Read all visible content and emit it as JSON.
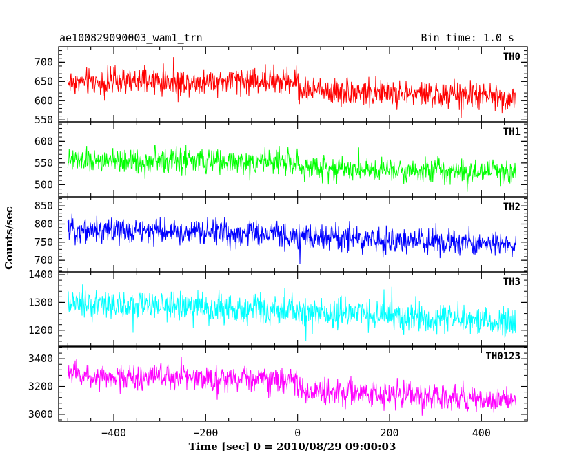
{
  "header": {
    "title": "ae100829090003_wam1_trn",
    "bin_time": "Bin time: 1.0 s"
  },
  "chart_data": {
    "type": "line",
    "xlabel": "Time [sec] 0 = 2010/08/29 09:00:03",
    "ylabel": "Counts/sec",
    "xlim": [
      -520,
      500
    ],
    "data_x_range": [
      -500,
      475
    ],
    "x_ticks": [
      -400,
      -200,
      0,
      200,
      400
    ],
    "x_tick_labels": [
      "−400",
      "−200",
      "0",
      "200",
      "400"
    ],
    "panels": [
      {
        "name": "TH0",
        "color": "#ff0000",
        "ylim": [
          545,
          740
        ],
        "y_ticks": [
          550,
          600,
          650,
          700
        ],
        "y_tick_labels": [
          "550",
          "600",
          "650",
          "700"
        ],
        "trend": [
          [
            -500,
            648
          ],
          [
            0,
            652
          ],
          [
            2,
            628
          ],
          [
            475,
            608
          ]
        ],
        "amplitude": 28
      },
      {
        "name": "TH1",
        "color": "#00ff00",
        "ylim": [
          472,
          645
        ],
        "y_ticks": [
          500,
          550,
          600
        ],
        "y_tick_labels": [
          "500",
          "550",
          "600"
        ],
        "trend": [
          [
            -500,
            555
          ],
          [
            0,
            552
          ],
          [
            2,
            540
          ],
          [
            475,
            530
          ]
        ],
        "amplitude": 22
      },
      {
        "name": "TH2",
        "color": "#0000ff",
        "ylim": [
          668,
          875
        ],
        "y_ticks": [
          700,
          750,
          800,
          850
        ],
        "y_tick_labels": [
          "700",
          "750",
          "800",
          "850"
        ],
        "trend": [
          [
            -500,
            785
          ],
          [
            0,
            770
          ],
          [
            2,
            765
          ],
          [
            475,
            742
          ]
        ],
        "amplitude": 28
      },
      {
        "name": "TH3",
        "color": "#00ffff",
        "ylim": [
          1140,
          1410
        ],
        "y_ticks": [
          1200,
          1300,
          1400
        ],
        "y_tick_labels": [
          "1200",
          "1300",
          "1400"
        ],
        "trend": [
          [
            -500,
            1295
          ],
          [
            0,
            1268
          ],
          [
            475,
            1225
          ]
        ],
        "amplitude": 42
      },
      {
        "name": "TH0123",
        "color": "#ff00ff",
        "ylim": [
          2950,
          3490
        ],
        "y_ticks": [
          3000,
          3200,
          3400
        ],
        "y_tick_labels": [
          "3000",
          "3200",
          "3400"
        ],
        "trend": [
          [
            -500,
            3290
          ],
          [
            0,
            3240
          ],
          [
            2,
            3170
          ],
          [
            475,
            3095
          ]
        ],
        "amplitude": 75
      }
    ]
  }
}
